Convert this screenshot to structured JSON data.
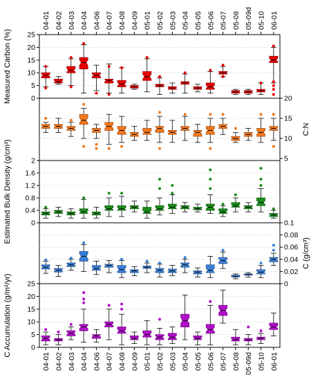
{
  "categories": [
    "04-01",
    "04-02",
    "04-03",
    "04-04",
    "04-06",
    "04-07",
    "04-08",
    "04-09",
    "05-01",
    "05-02",
    "05-03",
    "05-04",
    "05-05",
    "05-06",
    "05-07",
    "05-08",
    "05-09d",
    "05-10",
    "06-01"
  ],
  "chart_data": [
    {
      "type": "box",
      "ylabel": "Measured Carbon (%)",
      "ylim": [
        0,
        25
      ],
      "yticks": [
        0,
        5,
        10,
        15,
        20,
        25
      ],
      "ytick_labels": [
        "0",
        "5",
        "10",
        "15",
        "20",
        "25"
      ],
      "axis_side": "left",
      "color": "#e60000",
      "boxes": [
        {
          "min": 4.5,
          "q1": 8.0,
          "median": 9.0,
          "q3": 10.0,
          "max": 12.5
        },
        {
          "min": 5.5,
          "q1": 6.0,
          "median": 6.5,
          "q3": 7.5,
          "max": 8.5
        },
        {
          "min": 5.0,
          "q1": 10.0,
          "median": 11.0,
          "q3": 12.5,
          "max": 15.5
        },
        {
          "min": 2.0,
          "q1": 11.5,
          "median": 14.0,
          "q3": 16.0,
          "max": 21.0
        },
        {
          "min": 3.0,
          "q1": 8.0,
          "median": 9.0,
          "q3": 10.0,
          "max": 13.0
        },
        {
          "min": 2.0,
          "q1": 6.0,
          "median": 7.0,
          "q3": 7.5,
          "max": 13.5
        },
        {
          "min": 2.0,
          "q1": 4.5,
          "median": 5.5,
          "q3": 7.0,
          "max": 12.0
        },
        {
          "min": 3.5,
          "q1": 4.0,
          "median": 4.5,
          "q3": 5.0,
          "max": 5.5
        },
        {
          "min": 2.5,
          "q1": 7.0,
          "median": 8.5,
          "q3": 10.5,
          "max": 15.5
        },
        {
          "min": 1.5,
          "q1": 4.5,
          "median": 5.0,
          "q3": 5.5,
          "max": 8.0
        },
        {
          "min": 2.0,
          "q1": 3.5,
          "median": 4.0,
          "q3": 4.5,
          "max": 6.0
        },
        {
          "min": 2.0,
          "q1": 5.5,
          "median": 6.0,
          "q3": 6.5,
          "max": 9.5
        },
        {
          "min": 2.5,
          "q1": 3.5,
          "median": 4.0,
          "q3": 4.5,
          "max": 5.5
        },
        {
          "min": 2.0,
          "q1": 3.5,
          "median": 4.5,
          "q3": 6.0,
          "max": 10.5
        },
        {
          "min": 8.5,
          "q1": 9.5,
          "median": 10.0,
          "q3": 10.5,
          "max": 12.5
        },
        {
          "min": 1.5,
          "q1": 2.0,
          "median": 2.5,
          "q3": 3.0,
          "max": 3.5
        },
        {
          "min": 1.5,
          "q1": 2.0,
          "median": 2.5,
          "q3": 3.0,
          "max": 3.5
        },
        {
          "min": 1.5,
          "q1": 2.5,
          "median": 3.0,
          "q3": 3.5,
          "max": 6.0
        },
        {
          "min": 6.0,
          "q1": 14.0,
          "median": 15.0,
          "q3": 16.5,
          "max": 20.0
        }
      ],
      "outliers": [
        [
          0,
          12.5
        ],
        [
          0,
          4.0
        ],
        [
          2,
          4.5
        ],
        [
          2,
          16.0
        ],
        [
          3,
          21.5
        ],
        [
          4,
          2.0
        ],
        [
          5,
          1.5
        ],
        [
          5,
          12.5
        ],
        [
          6,
          12.0
        ],
        [
          8,
          16.0
        ],
        [
          9,
          8.5
        ],
        [
          11,
          10.0
        ],
        [
          13,
          11.0
        ],
        [
          14,
          13.0
        ],
        [
          14,
          8.5
        ],
        [
          17,
          6.0
        ],
        [
          18,
          20.5
        ],
        [
          18,
          6.5
        ],
        [
          18,
          5.0
        ],
        [
          18,
          3.5
        ],
        [
          18,
          1.5
        ]
      ]
    },
    {
      "type": "box",
      "ylabel": "C:N",
      "ylim": [
        4.5,
        20
      ],
      "yticks": [
        5,
        10,
        15,
        20
      ],
      "ytick_labels": [
        "5",
        "10",
        "15",
        "20"
      ],
      "axis_side": "right",
      "color": "#f07820",
      "boxes": [
        {
          "min": 11.5,
          "q1": 12.5,
          "median": 13.0,
          "q3": 13.5,
          "max": 14.0
        },
        {
          "min": 11.5,
          "q1": 12.5,
          "median": 13.0,
          "q3": 13.5,
          "max": 15.0
        },
        {
          "min": 10.5,
          "q1": 12.0,
          "median": 12.5,
          "q3": 13.0,
          "max": 14.0
        },
        {
          "min": 10.0,
          "q1": 13.5,
          "median": 14.5,
          "q3": 16.0,
          "max": 17.5
        },
        {
          "min": 10.0,
          "q1": 11.5,
          "median": 12.0,
          "q3": 12.5,
          "max": 13.5
        },
        {
          "min": 8.5,
          "q1": 12.0,
          "median": 13.0,
          "q3": 14.0,
          "max": 16.0
        },
        {
          "min": 9.0,
          "q1": 11.0,
          "median": 12.0,
          "q3": 13.0,
          "max": 15.5
        },
        {
          "min": 9.5,
          "q1": 10.5,
          "median": 11.0,
          "q3": 11.5,
          "max": 13.0
        },
        {
          "min": 9.5,
          "q1": 11.0,
          "median": 11.5,
          "q3": 12.5,
          "max": 14.5
        },
        {
          "min": 9.0,
          "q1": 11.5,
          "median": 12.5,
          "q3": 13.0,
          "max": 15.5
        },
        {
          "min": 9.0,
          "q1": 11.0,
          "median": 11.5,
          "q3": 12.0,
          "max": 14.5
        },
        {
          "min": 9.5,
          "q1": 12.0,
          "median": 12.5,
          "q3": 13.0,
          "max": 15.5
        },
        {
          "min": 9.0,
          "q1": 10.5,
          "median": 11.5,
          "q3": 12.0,
          "max": 13.5
        },
        {
          "min": 9.0,
          "q1": 11.0,
          "median": 12.0,
          "q3": 13.0,
          "max": 15.0
        },
        {
          "min": 11.0,
          "q1": 12.5,
          "median": 13.0,
          "q3": 13.5,
          "max": 15.0
        },
        {
          "min": 9.0,
          "q1": 9.5,
          "median": 10.0,
          "q3": 10.5,
          "max": 11.5
        },
        {
          "min": 9.5,
          "q1": 10.5,
          "median": 11.0,
          "q3": 11.5,
          "max": 12.5
        },
        {
          "min": 9.0,
          "q1": 10.5,
          "median": 11.5,
          "q3": 12.5,
          "max": 15.0
        },
        {
          "min": 9.5,
          "q1": 12.0,
          "median": 12.5,
          "q3": 13.0,
          "max": 15.0
        }
      ],
      "outliers": [
        [
          0,
          15.0
        ],
        [
          2,
          14.5
        ],
        [
          3,
          18.5
        ],
        [
          3,
          8.0
        ],
        [
          4,
          8.5
        ],
        [
          4,
          7.5
        ],
        [
          5,
          7.5
        ],
        [
          6,
          8.0
        ],
        [
          9,
          16.5
        ],
        [
          9,
          7.5
        ],
        [
          11,
          16.0
        ],
        [
          13,
          16.0
        ],
        [
          13,
          7.5
        ],
        [
          14,
          16.0
        ],
        [
          15,
          12.5
        ],
        [
          17,
          16.0
        ],
        [
          18,
          16.0
        ],
        [
          18,
          8.0
        ]
      ]
    },
    {
      "type": "box",
      "ylabel": "Estimated Bulk Density (g/cm³)",
      "ylim": [
        0,
        2.0
      ],
      "yticks": [
        0,
        0.4,
        0.8,
        1.2,
        1.6,
        2.0
      ],
      "ytick_labels": [
        "0",
        "0.4",
        "0.8",
        "1.2",
        "1.6",
        "2"
      ],
      "axis_side": "left",
      "color": "#1a8c1a",
      "boxes": [
        {
          "min": 0.15,
          "q1": 0.25,
          "median": 0.3,
          "q3": 0.35,
          "max": 0.45
        },
        {
          "min": 0.2,
          "q1": 0.3,
          "median": 0.35,
          "q3": 0.4,
          "max": 0.5
        },
        {
          "min": 0.15,
          "q1": 0.25,
          "median": 0.3,
          "q3": 0.35,
          "max": 0.45
        },
        {
          "min": 0.15,
          "q1": 0.3,
          "median": 0.35,
          "q3": 0.45,
          "max": 0.75
        },
        {
          "min": 0.15,
          "q1": 0.25,
          "median": 0.3,
          "q3": 0.35,
          "max": 0.5
        },
        {
          "min": 0.2,
          "q1": 0.4,
          "median": 0.45,
          "q3": 0.55,
          "max": 0.8
        },
        {
          "min": 0.2,
          "q1": 0.4,
          "median": 0.45,
          "q3": 0.55,
          "max": 0.85
        },
        {
          "min": 0.35,
          "q1": 0.45,
          "median": 0.5,
          "q3": 0.55,
          "max": 0.7
        },
        {
          "min": 0.15,
          "q1": 0.3,
          "median": 0.35,
          "q3": 0.5,
          "max": 0.7
        },
        {
          "min": 0.25,
          "q1": 0.4,
          "median": 0.45,
          "q3": 0.55,
          "max": 0.8
        },
        {
          "min": 0.3,
          "q1": 0.45,
          "median": 0.5,
          "q3": 0.6,
          "max": 0.9
        },
        {
          "min": 0.35,
          "q1": 0.45,
          "median": 0.5,
          "q3": 0.55,
          "max": 0.65
        },
        {
          "min": 0.35,
          "q1": 0.42,
          "median": 0.45,
          "q3": 0.5,
          "max": 0.6
        },
        {
          "min": 0.3,
          "q1": 0.4,
          "median": 0.5,
          "q3": 0.6,
          "max": 0.9
        },
        {
          "min": 0.2,
          "q1": 0.3,
          "median": 0.35,
          "q3": 0.45,
          "max": 0.55
        },
        {
          "min": 0.35,
          "q1": 0.5,
          "median": 0.55,
          "q3": 0.65,
          "max": 0.8
        },
        {
          "min": 0.35,
          "q1": 0.45,
          "median": 0.5,
          "q3": 0.55,
          "max": 0.65
        },
        {
          "min": 0.35,
          "q1": 0.55,
          "median": 0.65,
          "q3": 0.8,
          "max": 1.1
        },
        {
          "min": 0.15,
          "q1": 0.2,
          "median": 0.25,
          "q3": 0.3,
          "max": 0.4
        }
      ],
      "outliers": [
        [
          0,
          0.5
        ],
        [
          3,
          0.8
        ],
        [
          5,
          0.95
        ],
        [
          6,
          0.95
        ],
        [
          9,
          1.4
        ],
        [
          9,
          1.1
        ],
        [
          10,
          1.2
        ],
        [
          10,
          0.95
        ],
        [
          13,
          1.7
        ],
        [
          13,
          1.4
        ],
        [
          13,
          1.1
        ],
        [
          14,
          0.6
        ],
        [
          15,
          0.9
        ],
        [
          17,
          1.75
        ],
        [
          17,
          1.4
        ],
        [
          17,
          1.2
        ],
        [
          18,
          0.45
        ]
      ]
    },
    {
      "type": "box",
      "ylabel": "C (g/cm³)",
      "ylim": [
        0,
        0.1
      ],
      "yticks": [
        0,
        0.02,
        0.04,
        0.06,
        0.08,
        0.1
      ],
      "ytick_labels": [
        "0",
        "0.02",
        "0.04",
        "0.06",
        "0.08",
        "0.1"
      ],
      "axis_side": "right",
      "color": "#3a7fd5",
      "boxes": [
        {
          "min": 0.017,
          "q1": 0.024,
          "median": 0.027,
          "q3": 0.031,
          "max": 0.037
        },
        {
          "min": 0.012,
          "q1": 0.019,
          "median": 0.022,
          "q3": 0.025,
          "max": 0.03
        },
        {
          "min": 0.022,
          "q1": 0.028,
          "median": 0.031,
          "q3": 0.034,
          "max": 0.04
        },
        {
          "min": 0.02,
          "q1": 0.037,
          "median": 0.045,
          "q3": 0.053,
          "max": 0.064
        },
        {
          "min": 0.015,
          "q1": 0.022,
          "median": 0.025,
          "q3": 0.03,
          "max": 0.037
        },
        {
          "min": 0.018,
          "q1": 0.027,
          "median": 0.03,
          "q3": 0.032,
          "max": 0.038
        },
        {
          "min": 0.01,
          "q1": 0.018,
          "median": 0.023,
          "q3": 0.03,
          "max": 0.038
        },
        {
          "min": 0.013,
          "q1": 0.018,
          "median": 0.021,
          "q3": 0.023,
          "max": 0.028
        },
        {
          "min": 0.018,
          "q1": 0.025,
          "median": 0.027,
          "q3": 0.029,
          "max": 0.034
        },
        {
          "min": 0.011,
          "q1": 0.018,
          "median": 0.022,
          "q3": 0.025,
          "max": 0.032
        },
        {
          "min": 0.013,
          "q1": 0.018,
          "median": 0.021,
          "q3": 0.024,
          "max": 0.03
        },
        {
          "min": 0.018,
          "q1": 0.027,
          "median": 0.031,
          "q3": 0.034,
          "max": 0.04
        },
        {
          "min": 0.011,
          "q1": 0.016,
          "median": 0.019,
          "q3": 0.021,
          "max": 0.026
        },
        {
          "min": 0.01,
          "q1": 0.018,
          "median": 0.022,
          "q3": 0.031,
          "max": 0.045
        },
        {
          "min": 0.025,
          "q1": 0.033,
          "median": 0.038,
          "q3": 0.043,
          "max": 0.052
        },
        {
          "min": 0.008,
          "q1": 0.011,
          "median": 0.012,
          "q3": 0.014,
          "max": 0.016
        },
        {
          "min": 0.011,
          "q1": 0.014,
          "median": 0.015,
          "q3": 0.016,
          "max": 0.018
        },
        {
          "min": 0.01,
          "q1": 0.016,
          "median": 0.019,
          "q3": 0.023,
          "max": 0.03
        },
        {
          "min": 0.03,
          "q1": 0.036,
          "median": 0.04,
          "q3": 0.043,
          "max": 0.05
        }
      ],
      "outliers": [
        [
          0,
          0.039
        ],
        [
          2,
          0.042
        ],
        [
          3,
          0.067
        ],
        [
          6,
          0.04
        ],
        [
          8,
          0.037
        ],
        [
          9,
          0.034
        ],
        [
          11,
          0.043
        ],
        [
          14,
          0.055
        ],
        [
          17,
          0.034
        ],
        [
          18,
          0.063
        ],
        [
          18,
          0.055
        ]
      ]
    },
    {
      "type": "box",
      "ylabel": "C Accumulation (g/m²/yr)",
      "ylim": [
        0,
        25
      ],
      "yticks": [
        0,
        5,
        10,
        15,
        20,
        25
      ],
      "ytick_labels": [
        "0",
        "5",
        "10",
        "15",
        "20",
        "25"
      ],
      "axis_side": "left",
      "color": "#b010c8",
      "boxes": [
        {
          "min": 1.0,
          "q1": 2.5,
          "median": 3.5,
          "q3": 4.5,
          "max": 6.0
        },
        {
          "min": 1.0,
          "q1": 2.5,
          "median": 3.0,
          "q3": 3.5,
          "max": 5.0
        },
        {
          "min": 3.0,
          "q1": 4.5,
          "median": 5.5,
          "q3": 6.5,
          "max": 8.0
        },
        {
          "min": 2.0,
          "q1": 6.5,
          "median": 8.0,
          "q3": 9.0,
          "max": 15.0
        },
        {
          "min": 2.0,
          "q1": 3.5,
          "median": 4.5,
          "q3": 5.0,
          "max": 7.0
        },
        {
          "min": 3.0,
          "q1": 8.0,
          "median": 9.0,
          "q3": 10.0,
          "max": 15.0
        },
        {
          "min": 1.0,
          "q1": 5.5,
          "median": 6.5,
          "q3": 8.0,
          "max": 13.0
        },
        {
          "min": 1.5,
          "q1": 3.0,
          "median": 3.5,
          "q3": 4.5,
          "max": 6.0
        },
        {
          "min": 1.0,
          "q1": 4.0,
          "median": 5.0,
          "q3": 6.5,
          "max": 10.5
        },
        {
          "min": 1.0,
          "q1": 3.0,
          "median": 4.0,
          "q3": 5.0,
          "max": 7.5
        },
        {
          "min": 1.5,
          "q1": 3.0,
          "median": 4.0,
          "q3": 5.5,
          "max": 8.0
        },
        {
          "min": 3.0,
          "q1": 8.0,
          "median": 10.5,
          "q3": 13.0,
          "max": 20.5
        },
        {
          "min": 1.0,
          "q1": 3.0,
          "median": 3.5,
          "q3": 4.5,
          "max": 6.0
        },
        {
          "min": 1.0,
          "q1": 5.5,
          "median": 7.0,
          "q3": 9.0,
          "max": 16.5
        },
        {
          "min": 9.5,
          "q1": 12.5,
          "median": 14.5,
          "q3": 16.5,
          "max": 22.5
        },
        {
          "min": 1.0,
          "q1": 2.5,
          "median": 3.0,
          "q3": 4.0,
          "max": 7.0
        },
        {
          "min": 1.0,
          "q1": 2.5,
          "median": 3.0,
          "q3": 3.5,
          "max": 5.0
        },
        {
          "min": 1.5,
          "q1": 3.0,
          "median": 3.5,
          "q3": 4.0,
          "max": 5.5
        },
        {
          "min": 4.5,
          "q1": 7.0,
          "median": 8.0,
          "q3": 9.5,
          "max": 13.5
        }
      ],
      "outliers": [
        [
          0,
          7.0
        ],
        [
          1,
          6.0
        ],
        [
          2,
          9.0
        ],
        [
          3,
          21.5
        ],
        [
          3,
          19.0
        ],
        [
          3,
          17.5
        ],
        [
          5,
          16.5
        ],
        [
          6,
          15.0
        ],
        [
          6,
          17.0
        ],
        [
          9,
          11.0
        ],
        [
          13,
          18.0
        ],
        [
          16,
          8.0
        ],
        [
          17,
          6.5
        ]
      ]
    }
  ]
}
